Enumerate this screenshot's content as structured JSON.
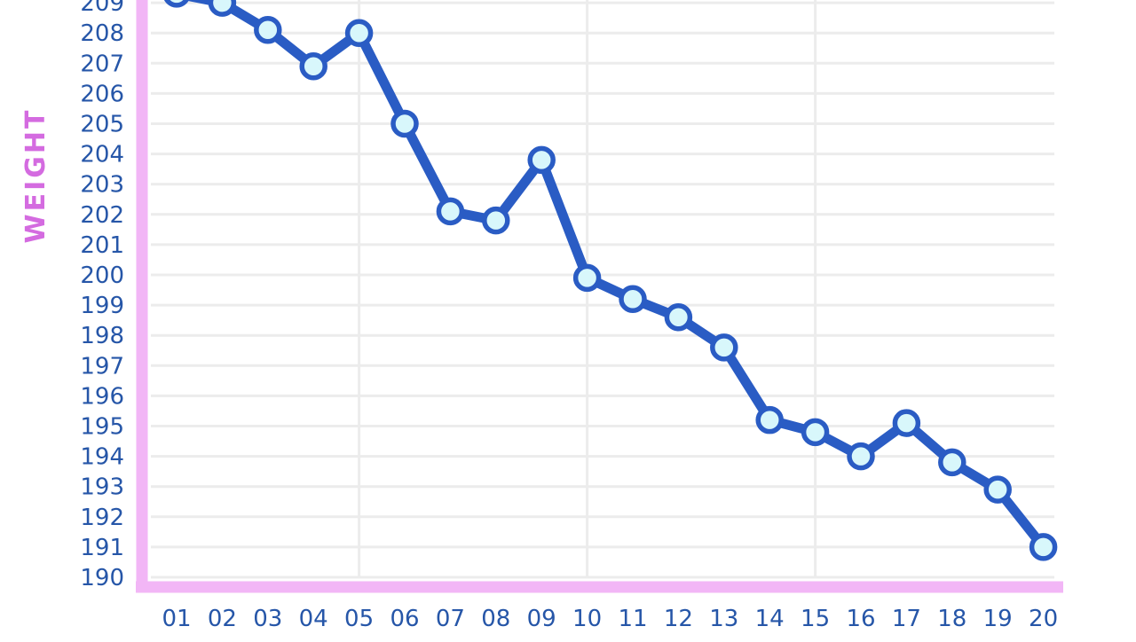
{
  "colors": {
    "background": "#ffffff",
    "axis": "#f2b6f6",
    "grid": "#ececec",
    "line": "#2a5cc4",
    "marker_fill": "#d8f7fb",
    "tick_text": "#2656a8",
    "ylabel_text": "#d46be0"
  },
  "chart_data": {
    "type": "line",
    "title": "",
    "xlabel": "",
    "ylabel": "WEIGHT",
    "x": [
      "01",
      "02",
      "03",
      "04",
      "05",
      "06",
      "07",
      "08",
      "09",
      "10",
      "11",
      "12",
      "13",
      "14",
      "15",
      "16",
      "17",
      "18",
      "19",
      "20"
    ],
    "y_ticks": [
      "190",
      "191",
      "192",
      "193",
      "194",
      "195",
      "196",
      "197",
      "198",
      "199",
      "200",
      "201",
      "202",
      "203",
      "204",
      "205",
      "206",
      "207",
      "208",
      "209"
    ],
    "ylim": [
      190,
      209
    ],
    "grid": true,
    "series": [
      {
        "values": [
          209.3,
          209.0,
          208.1,
          206.9,
          208.0,
          205.0,
          202.1,
          201.8,
          203.8,
          199.9,
          199.2,
          198.6,
          197.6,
          195.2,
          194.8,
          194.0,
          195.1,
          193.8,
          192.9,
          191.0
        ]
      }
    ]
  }
}
